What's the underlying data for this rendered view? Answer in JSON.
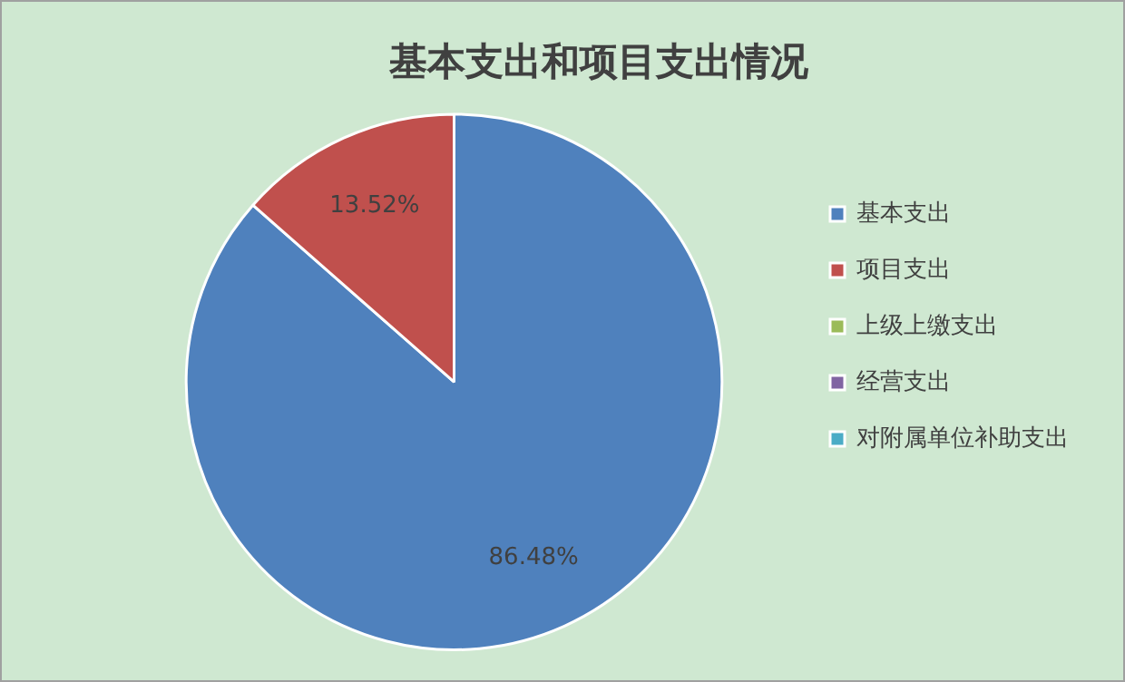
{
  "chart_data": {
    "type": "pie",
    "title": "基本支出和项目支出情况",
    "categories": [
      "基本支出",
      "项目支出",
      "上级上缴支出",
      "经营支出",
      "对附属单位补助支出"
    ],
    "values": [
      86.48,
      13.52,
      0,
      0,
      0
    ],
    "colors": [
      "#4f81bd",
      "#c0504d",
      "#9bbb59",
      "#8064a2",
      "#4bacc6"
    ],
    "value_labels": [
      "86.48%",
      "13.52%",
      null,
      null,
      null
    ],
    "legend": "right"
  }
}
